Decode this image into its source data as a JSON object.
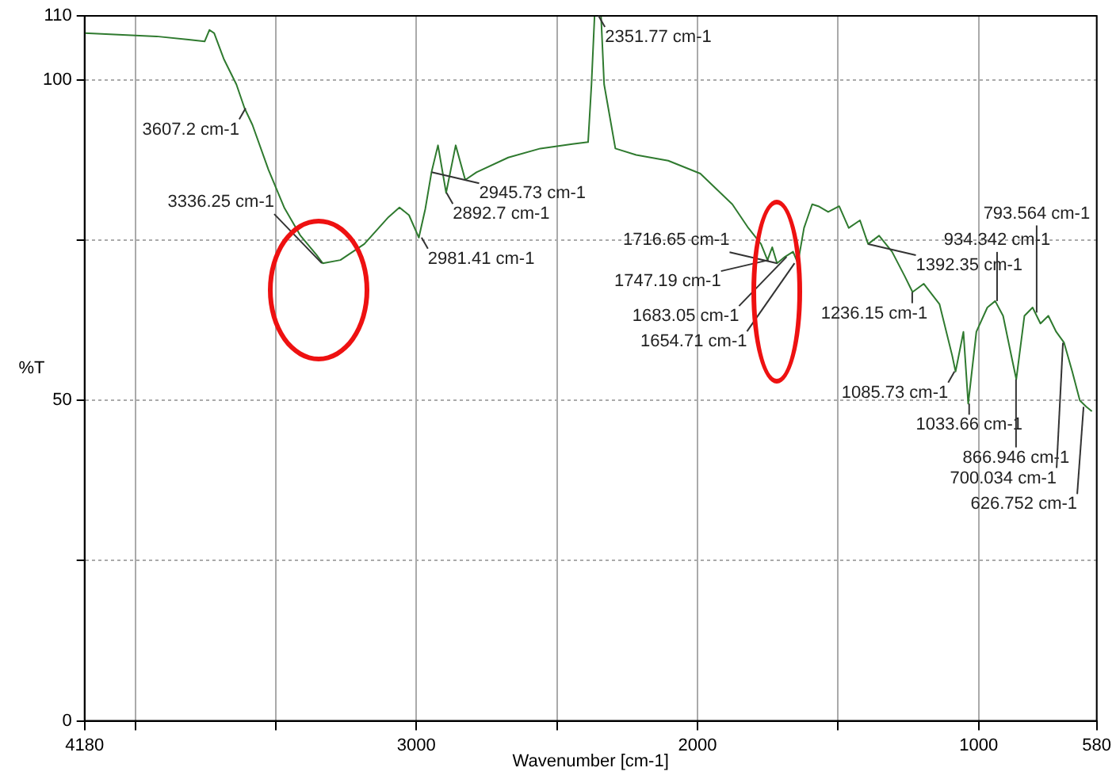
{
  "chart_data": {
    "type": "line",
    "xlabel": "Wavenumber [cm-1]",
    "ylabel": "%T",
    "color": "#2f7a2f",
    "x": [
      4180,
      3924,
      3810,
      3753,
      3736,
      3719,
      3685,
      3640,
      3611,
      3583,
      3526,
      3469,
      3412,
      3355,
      3333,
      3270,
      3185,
      3099,
      3060,
      3026,
      2991,
      2968,
      2946,
      2923,
      2894,
      2860,
      2826,
      2786,
      2673,
      2559,
      2445,
      2389,
      2377,
      2366,
      2343,
      2332,
      2292,
      2218,
      2104,
      1990,
      1876,
      1819,
      1774,
      1751,
      1734,
      1717,
      1689,
      1660,
      1643,
      1621,
      1592,
      1570,
      1535,
      1496,
      1462,
      1422,
      1393,
      1354,
      1308,
      1263,
      1235,
      1195,
      1139,
      1094,
      1082,
      1054,
      1037,
      1008,
      969,
      941,
      913,
      879,
      866,
      837,
      808,
      780,
      752,
      724,
      696,
      667,
      640,
      617,
      597
    ],
    "values": [
      107.3,
      106.8,
      106.3,
      106,
      107.8,
      107.3,
      103.3,
      99.3,
      95.6,
      93,
      86,
      80,
      75.7,
      72.7,
      71.4,
      71.9,
      74.4,
      78.6,
      80.1,
      78.9,
      75.4,
      79.9,
      85.6,
      89.8,
      82.4,
      89.8,
      84.4,
      85.6,
      87.9,
      89.3,
      90,
      90.3,
      99.3,
      110,
      110,
      99.3,
      89.3,
      88.3,
      87.4,
      85.4,
      80.6,
      76.9,
      74.4,
      71.9,
      73.9,
      71.4,
      72.4,
      73.2,
      71.4,
      76.9,
      80.6,
      80.3,
      79.4,
      80.3,
      76.9,
      78.1,
      74.4,
      75.7,
      73.2,
      69.4,
      66.9,
      68.2,
      65,
      57,
      54.5,
      60.7,
      49.5,
      60.7,
      64.5,
      65.5,
      63.2,
      56,
      53.3,
      63.2,
      64.5,
      62,
      63.2,
      60.7,
      59,
      54.5,
      50,
      49,
      48.3
    ],
    "xlim": [
      4180,
      580
    ],
    "xticks": [
      4180,
      {
        "value": 4000,
        "label": null
      },
      {
        "value": 3500,
        "label": null
      },
      3000,
      {
        "value": 2500,
        "label": null
      },
      2000,
      {
        "value": 1500,
        "label": null
      },
      1000,
      580
    ],
    "ylim": [
      0,
      110
    ],
    "yticks": [
      0,
      {
        "value": 25,
        "label": null
      },
      50,
      {
        "value": 75,
        "label": null
      },
      100,
      110
    ],
    "grid": true,
    "line_style": "solid",
    "marker": "none",
    "legend": false,
    "annotations": [
      {
        "text": "3607.2 cm-1",
        "x": 3607.2,
        "y": 95.6
      },
      {
        "text": "3336.25 cm-1",
        "x": 3336.25,
        "y": 71.4
      },
      {
        "text": "2981.41 cm-1",
        "x": 2981.41,
        "y": 75.4
      },
      {
        "text": "2945.73 cm-1",
        "x": 2945.73,
        "y": 85.6
      },
      {
        "text": "2892.7 cm-1",
        "x": 2892.7,
        "y": 82.4
      },
      {
        "text": "2351.77 cm-1",
        "x": 2351.77,
        "y": 110
      },
      {
        "text": "1747.19 cm-1",
        "x": 1747.19,
        "y": 71.9
      },
      {
        "text": "1716.65 cm-1",
        "x": 1716.65,
        "y": 71.4
      },
      {
        "text": "1683.05 cm-1",
        "x": 1683.05,
        "y": 72.4
      },
      {
        "text": "1654.71 cm-1",
        "x": 1654.71,
        "y": 71.4
      },
      {
        "text": "1392.35 cm-1",
        "x": 1392.35,
        "y": 74.4
      },
      {
        "text": "1236.15 cm-1",
        "x": 1236.15,
        "y": 66.9
      },
      {
        "text": "1085.73 cm-1",
        "x": 1085.73,
        "y": 54.5
      },
      {
        "text": "1033.66 cm-1",
        "x": 1033.66,
        "y": 49.5
      },
      {
        "text": "934.342 cm-1",
        "x": 934.342,
        "y": 65.5
      },
      {
        "text": "866.946 cm-1",
        "x": 866.946,
        "y": 53.3
      },
      {
        "text": "793.564 cm-1",
        "x": 793.564,
        "y": 63.7
      },
      {
        "text": "700.034 cm-1",
        "x": 700.034,
        "y": 59
      },
      {
        "text": "626.752 cm-1",
        "x": 626.752,
        "y": 49
      }
    ]
  }
}
